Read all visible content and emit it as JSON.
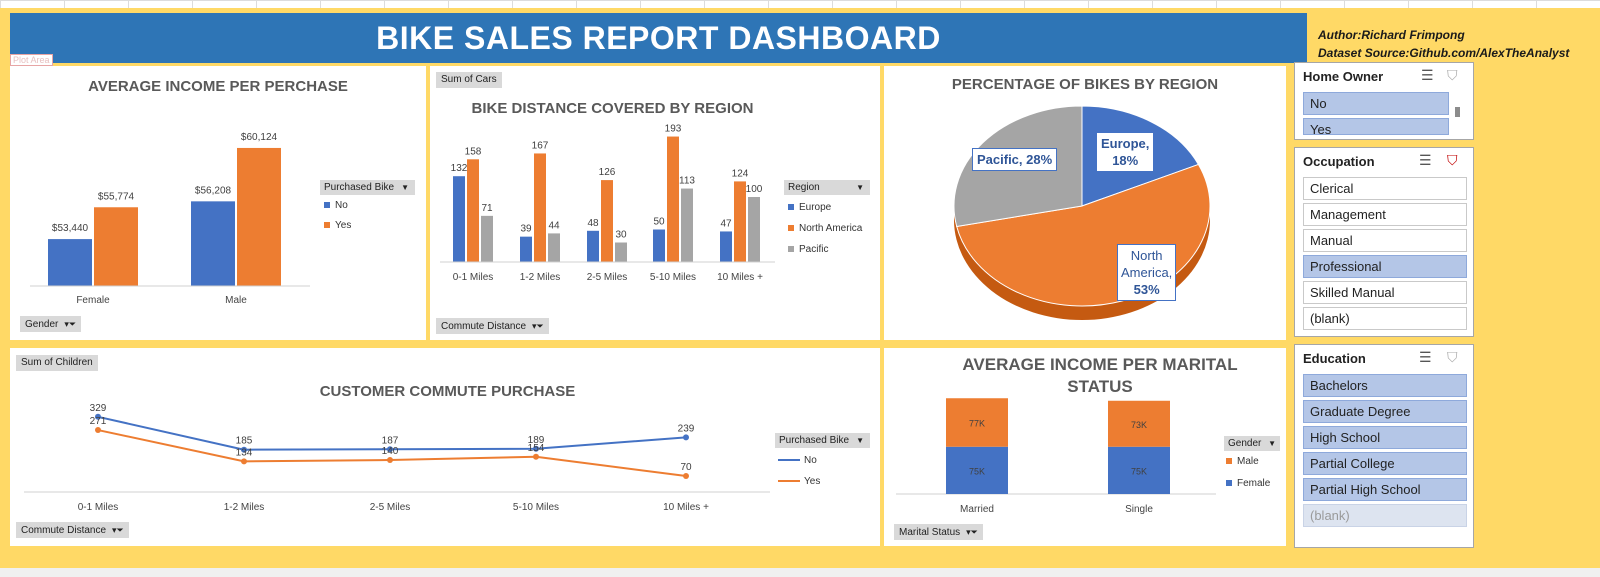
{
  "header": {
    "title": "BIKE SALES REPORT DASHBOARD",
    "author": "Author:Richard Frimpong",
    "source": "Dataset Source:Github.com/AlexTheAnalyst",
    "plot_area_label": "Plot Area"
  },
  "colors": {
    "blue": "#4472c4",
    "orange": "#ed7d31",
    "gray": "#a5a5a5",
    "banner": "#2e75b6",
    "bg": "#ffd966"
  },
  "income_chart": {
    "title": "AVERAGE INCOME PER PERCHASE",
    "legend_title": "Purchased Bike",
    "legend": [
      "No",
      "Yes"
    ],
    "axis_button": "Gender",
    "labels": [
      "$53,440",
      "$55,774",
      "$56,208",
      "$60,124"
    ]
  },
  "distance_chart": {
    "title": "BIKE DISTANCE COVERED BY REGION",
    "value_button": "Sum of Cars",
    "legend_title": "Region",
    "legend": [
      "Europe",
      "North America",
      "Pacific"
    ],
    "axis_button": "Commute Distance"
  },
  "pie_chart": {
    "title": "PERCENTAGE OF BIKES BY REGION",
    "labels": {
      "pacific": "Pacific, 28%",
      "europe_name": "Europe,",
      "europe_pct": "18%",
      "na_name1": "North",
      "na_name2": "America,",
      "na_pct": "53%"
    }
  },
  "commute_chart": {
    "title": "CUSTOMER COMMUTE PURCHASE",
    "value_button": "Sum of Children",
    "legend_title": "Purchased Bike",
    "legend": [
      "No",
      "Yes"
    ],
    "axis_button": "Commute Distance"
  },
  "marital_chart": {
    "title_line1": "AVERAGE INCOME PER MARITAL",
    "title_line2": "STATUS",
    "legend_title": "Gender",
    "legend": [
      "Male",
      "Female"
    ],
    "axis_button": "Marital Status",
    "labels": [
      "75K",
      "77K",
      "75K",
      "73K"
    ]
  },
  "slicers": {
    "home_owner": {
      "title": "Home Owner",
      "items": [
        "No",
        "Yes"
      ]
    },
    "occupation": {
      "title": "Occupation",
      "items": [
        "Clerical",
        "Management",
        "Manual",
        "Professional",
        "Skilled Manual",
        "(blank)"
      ]
    },
    "education": {
      "title": "Education",
      "items": [
        "Bachelors",
        "Graduate Degree",
        "High School",
        "Partial College",
        "Partial High School",
        "(blank)"
      ]
    }
  },
  "chart_data": [
    {
      "type": "bar",
      "title": "AVERAGE INCOME PER PERCHASE",
      "categories": [
        "Female",
        "Male"
      ],
      "series": [
        {
          "name": "No",
          "values": [
            53440,
            56208
          ]
        },
        {
          "name": "Yes",
          "values": [
            55774,
            60124
          ]
        }
      ],
      "ylim": [
        50000,
        61000
      ],
      "legend": "right"
    },
    {
      "type": "bar",
      "title": "BIKE DISTANCE COVERED BY REGION",
      "categories": [
        "0-1 Miles",
        "1-2 Miles",
        "2-5 Miles",
        "5-10 Miles",
        "10 Miles +"
      ],
      "series": [
        {
          "name": "Europe",
          "values": [
            132,
            39,
            48,
            50,
            47
          ]
        },
        {
          "name": "North America",
          "values": [
            158,
            167,
            126,
            193,
            124
          ]
        },
        {
          "name": "Pacific",
          "values": [
            71,
            44,
            30,
            113,
            100
          ]
        }
      ],
      "ylim": [
        0,
        200
      ],
      "legend": "right"
    },
    {
      "type": "pie",
      "title": "PERCENTAGE OF BIKES BY REGION",
      "categories": [
        "Europe",
        "North America",
        "Pacific"
      ],
      "values": [
        18,
        53,
        28
      ]
    },
    {
      "type": "line",
      "title": "CUSTOMER COMMUTE PURCHASE",
      "categories": [
        "0-1 Miles",
        "1-2 Miles",
        "2-5 Miles",
        "5-10 Miles",
        "10 Miles +"
      ],
      "series": [
        {
          "name": "No",
          "values": [
            329,
            185,
            187,
            189,
            239
          ]
        },
        {
          "name": "Yes",
          "values": [
            271,
            134,
            140,
            154,
            70
          ]
        }
      ],
      "value_labels": [
        [
          "329",
          "185",
          "187",
          "189",
          "239"
        ],
        [
          "271",
          "134",
          "140",
          "154",
          "70"
        ]
      ],
      "legend": "right"
    },
    {
      "type": "bar",
      "title": "AVERAGE INCOME PER MARITAL STATUS",
      "stacked": true,
      "categories": [
        "Married",
        "Single"
      ],
      "series": [
        {
          "name": "Female",
          "values": [
            75,
            75
          ]
        },
        {
          "name": "Male",
          "values": [
            77,
            73
          ]
        }
      ],
      "legend": "right"
    }
  ]
}
